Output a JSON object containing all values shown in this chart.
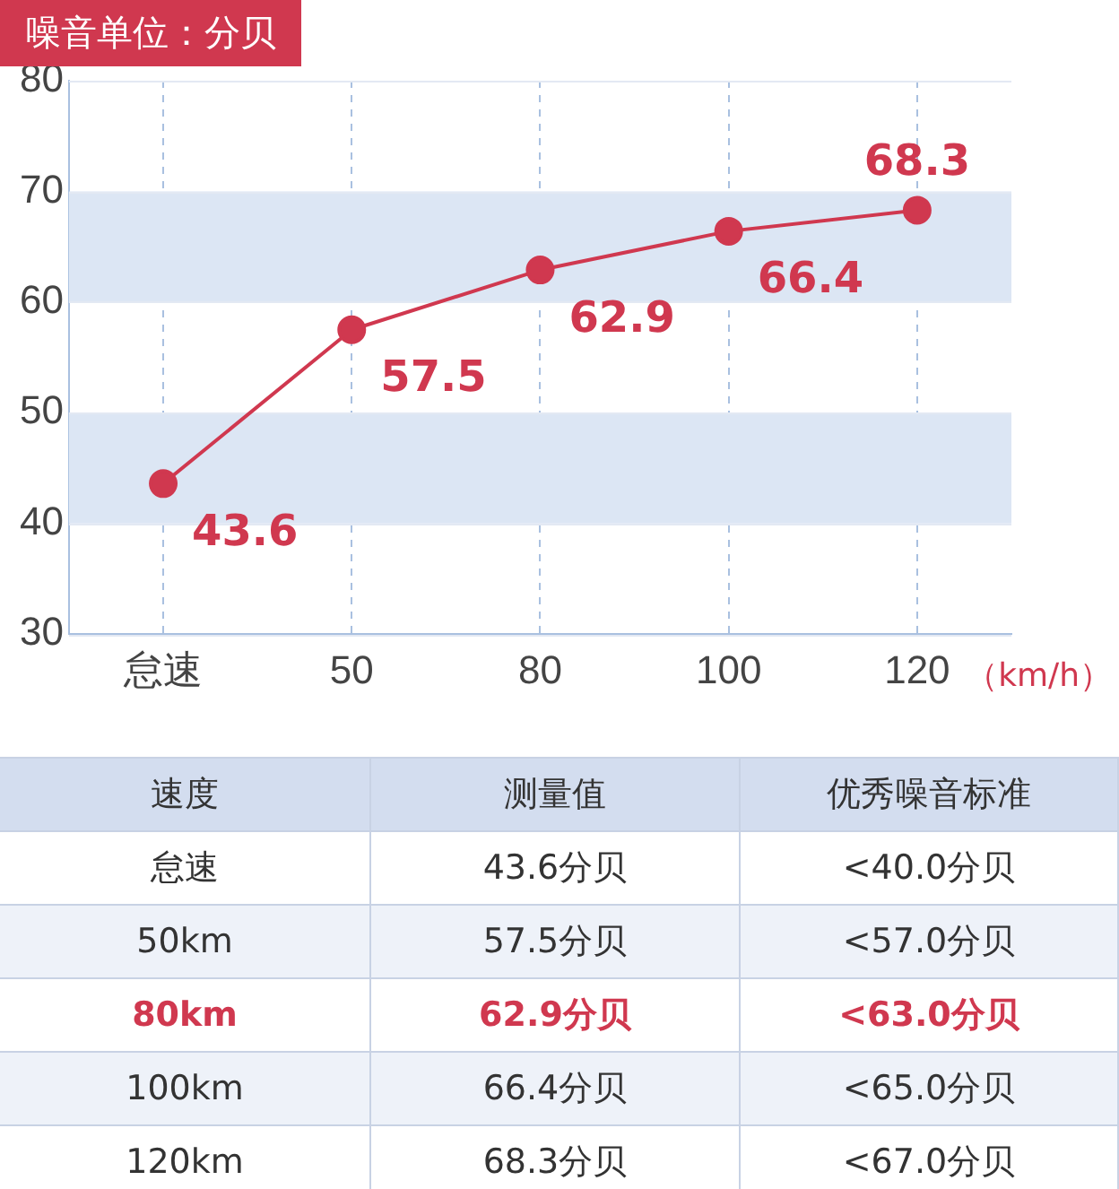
{
  "chart_data": [
    {
      "type": "line",
      "title": "噪音单位：分贝",
      "xlabel": "（km/h）",
      "categories": [
        "怠速",
        "50",
        "80",
        "100",
        "120"
      ],
      "series": [
        {
          "color": "#d0384f",
          "values": [
            43.6,
            57.5,
            62.9,
            66.4,
            68.3
          ]
        }
      ],
      "ylim": [
        30,
        80
      ],
      "yticks": [
        30,
        40,
        50,
        60,
        70,
        80
      ],
      "bands": [
        {
          "axis": "y",
          "from": 40,
          "to": 50,
          "color": "#dce6f4"
        },
        {
          "axis": "y",
          "from": 60,
          "to": 70,
          "color": "#dce6f4"
        }
      ],
      "grid": true,
      "marker": "circle",
      "data_labels": true,
      "legend": false
    },
    {
      "type": "other",
      "annotations": [
        "速度",
        "测量值",
        "优秀噪音标准",
        "怠速",
        "43.6分贝",
        "<40.0分贝",
        "50km",
        "57.5分贝",
        "<57.0分贝",
        "80km",
        "62.9分贝",
        "<63.0分贝",
        "100km",
        "66.4分贝",
        "<65.0分贝",
        "120km",
        "68.3分贝",
        "<67.0分贝"
      ]
    }
  ]
}
